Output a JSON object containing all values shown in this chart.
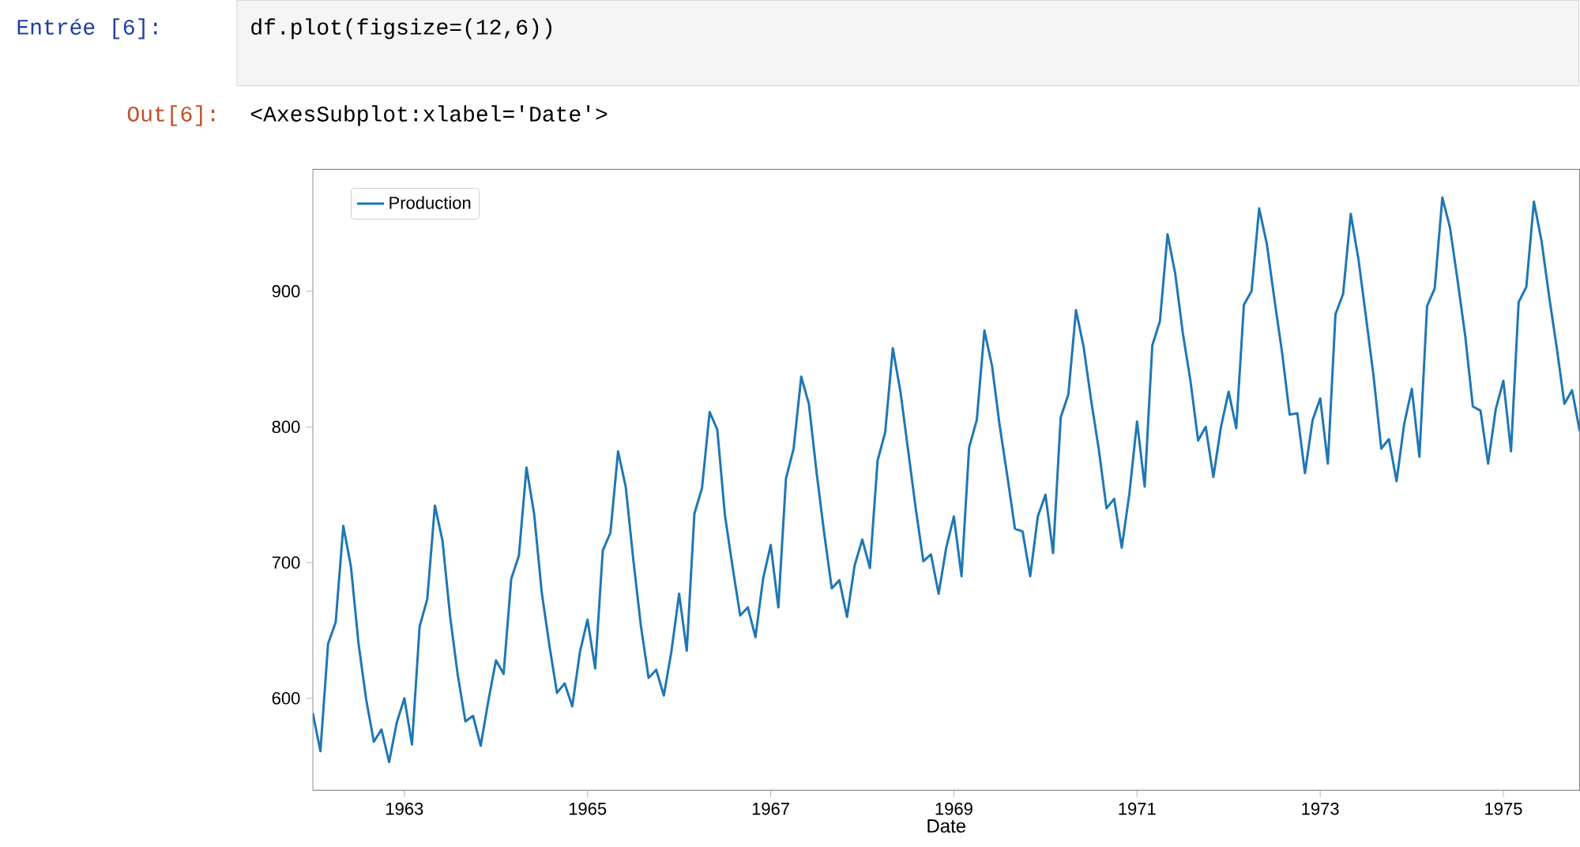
{
  "chart_data": {
    "type": "line",
    "x": [
      "1962-01",
      "1962-02",
      "1962-03",
      "1962-04",
      "1962-05",
      "1962-06",
      "1962-07",
      "1962-08",
      "1962-09",
      "1962-10",
      "1962-11",
      "1962-12",
      "1963-01",
      "1963-02",
      "1963-03",
      "1963-04",
      "1963-05",
      "1963-06",
      "1963-07",
      "1963-08",
      "1963-09",
      "1963-10",
      "1963-11",
      "1963-12",
      "1964-01",
      "1964-02",
      "1964-03",
      "1964-04",
      "1964-05",
      "1964-06",
      "1964-07",
      "1964-08",
      "1964-09",
      "1964-10",
      "1964-11",
      "1964-12",
      "1965-01",
      "1965-02",
      "1965-03",
      "1965-04",
      "1965-05",
      "1965-06",
      "1965-07",
      "1965-08",
      "1965-09",
      "1965-10",
      "1965-11",
      "1965-12",
      "1966-01",
      "1966-02",
      "1966-03",
      "1966-04",
      "1966-05",
      "1966-06",
      "1966-07",
      "1966-08",
      "1966-09",
      "1966-10",
      "1966-11",
      "1966-12",
      "1967-01",
      "1967-02",
      "1967-03",
      "1967-04",
      "1967-05",
      "1967-06",
      "1967-07",
      "1967-08",
      "1967-09",
      "1967-10",
      "1967-11",
      "1967-12",
      "1968-01",
      "1968-02",
      "1968-03",
      "1968-04",
      "1968-05",
      "1968-06",
      "1968-07",
      "1968-08",
      "1968-09",
      "1968-10",
      "1968-11",
      "1968-12",
      "1969-01",
      "1969-02",
      "1969-03",
      "1969-04",
      "1969-05",
      "1969-06",
      "1969-07",
      "1969-08",
      "1969-09",
      "1969-10",
      "1969-11",
      "1969-12",
      "1970-01",
      "1970-02",
      "1970-03",
      "1970-04",
      "1970-05",
      "1970-06",
      "1970-07",
      "1970-08",
      "1970-09",
      "1970-10",
      "1970-11",
      "1970-12",
      "1971-01",
      "1971-02",
      "1971-03",
      "1971-04",
      "1971-05",
      "1971-06",
      "1971-07",
      "1971-08",
      "1971-09",
      "1971-10",
      "1971-11",
      "1971-12",
      "1972-01",
      "1972-02",
      "1972-03",
      "1972-04",
      "1972-05",
      "1972-06",
      "1972-07",
      "1972-08",
      "1972-09",
      "1972-10",
      "1972-11",
      "1972-12",
      "1973-01",
      "1973-02",
      "1973-03",
      "1973-04",
      "1973-05",
      "1973-06",
      "1973-07",
      "1973-08",
      "1973-09",
      "1973-10",
      "1973-11",
      "1973-12",
      "1974-01",
      "1974-02",
      "1974-03",
      "1974-04",
      "1974-05",
      "1974-06",
      "1974-07",
      "1974-08",
      "1974-09",
      "1974-10",
      "1974-11",
      "1974-12",
      "1975-01",
      "1975-02",
      "1975-03",
      "1975-04",
      "1975-05",
      "1975-06",
      "1975-07",
      "1975-08",
      "1975-09",
      "1975-10",
      "1975-11"
    ],
    "series": [
      {
        "name": "Production",
        "color": "#1f77b4",
        "values": [
          589,
          561,
          640,
          656,
          727,
          697,
          640,
          599,
          568,
          577,
          553,
          582,
          600,
          566,
          653,
          673,
          742,
          716,
          660,
          617,
          583,
          587,
          565,
          598,
          628,
          618,
          688,
          705,
          770,
          736,
          678,
          639,
          604,
          611,
          594,
          634,
          658,
          622,
          709,
          722,
          782,
          756,
          702,
          653,
          615,
          621,
          602,
          635,
          677,
          635,
          736,
          755,
          811,
          798,
          735,
          697,
          661,
          667,
          645,
          688,
          713,
          667,
          762,
          784,
          837,
          817,
          767,
          722,
          681,
          687,
          660,
          698,
          717,
          696,
          775,
          796,
          858,
          826,
          783,
          740,
          701,
          706,
          677,
          711,
          734,
          690,
          785,
          805,
          871,
          845,
          801,
          764,
          725,
          723,
          690,
          734,
          750,
          707,
          807,
          824,
          886,
          859,
          819,
          783,
          740,
          747,
          711,
          751,
          804,
          756,
          860,
          878,
          942,
          913,
          869,
          834,
          790,
          800,
          763,
          800,
          826,
          799,
          890,
          900,
          961,
          935,
          894,
          855,
          809,
          810,
          766,
          805,
          821,
          773,
          883,
          898,
          957,
          924,
          881,
          837,
          784,
          791,
          760,
          802,
          828,
          778,
          889,
          902,
          969,
          947,
          908,
          867,
          815,
          812,
          773,
          813,
          834,
          782,
          892,
          903,
          966,
          937,
          896,
          858,
          817,
          827,
          797
        ]
      }
    ],
    "xlabel": "Date",
    "xlim": [
      "1962-01",
      "1975-11"
    ],
    "xticks": [
      "1963",
      "1965",
      "1967",
      "1969",
      "1971",
      "1973",
      "1975"
    ],
    "ylim": [
      532.2,
      989.8
    ],
    "yticks": [
      600,
      700,
      800,
      900
    ],
    "legend": "top left",
    "annotations": [
      "Entrée [6]:",
      "df.plot(figsize=(12,6))",
      "Out[6]:",
      "<AxesSubplot:xlabel='Date'>"
    ]
  }
}
